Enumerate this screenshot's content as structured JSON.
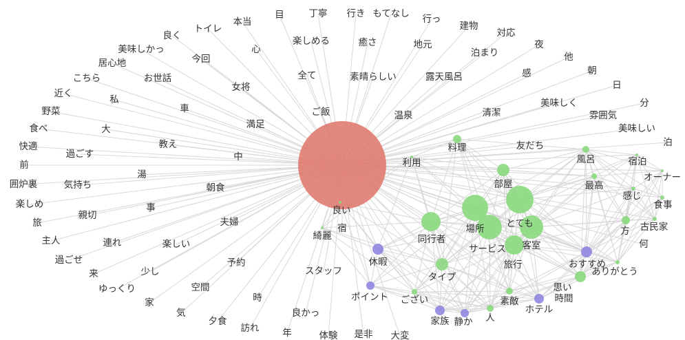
{
  "nodes": [
    {
      "label": "トイレ"
    },
    {
      "label": "本当"
    },
    {
      "label": "目"
    },
    {
      "label": "丁寧"
    },
    {
      "label": "行き"
    },
    {
      "label": "もてなし"
    },
    {
      "label": "行っ"
    },
    {
      "label": "建物"
    },
    {
      "label": "対応"
    },
    {
      "label": "夜"
    },
    {
      "label": "他"
    },
    {
      "label": "朝"
    },
    {
      "label": "日"
    },
    {
      "label": "分"
    },
    {
      "label": "美味しい"
    },
    {
      "label": "泊"
    },
    {
      "label": "宿泊"
    },
    {
      "label": "オーナー"
    },
    {
      "label": "食事"
    },
    {
      "label": "古民家"
    },
    {
      "label": "何"
    },
    {
      "label": "ありがとう"
    },
    {
      "label": "良く"
    },
    {
      "label": "美味しかっ"
    },
    {
      "label": "居心地"
    },
    {
      "label": "こちら"
    },
    {
      "label": "近く"
    },
    {
      "label": "野菜"
    },
    {
      "label": "食べ"
    },
    {
      "label": "快適"
    },
    {
      "label": "前"
    },
    {
      "label": "囲炉裏"
    },
    {
      "label": "楽しめ"
    },
    {
      "label": "旅"
    },
    {
      "label": "主人"
    },
    {
      "label": "過ごせ"
    },
    {
      "label": "来"
    },
    {
      "label": "ゆっくり"
    },
    {
      "label": "家"
    },
    {
      "label": "気"
    },
    {
      "label": "夕食"
    },
    {
      "label": "訪れ"
    },
    {
      "label": "年"
    },
    {
      "label": "体験"
    },
    {
      "label": "是非"
    },
    {
      "label": "大変"
    },
    {
      "label": "今回"
    },
    {
      "label": "心"
    },
    {
      "label": "楽しめる"
    },
    {
      "label": "癒さ"
    },
    {
      "label": "地元"
    },
    {
      "label": "泊まり"
    },
    {
      "label": "感"
    },
    {
      "label": "お世話"
    },
    {
      "label": "女将"
    },
    {
      "label": "全て"
    },
    {
      "label": "素晴らしい"
    },
    {
      "label": "露天風呂"
    },
    {
      "label": "私"
    },
    {
      "label": "車"
    },
    {
      "label": "満足"
    },
    {
      "label": "ご飯"
    },
    {
      "label": "温泉"
    },
    {
      "label": "清潔"
    },
    {
      "label": "美味しく"
    },
    {
      "label": "雰囲気"
    },
    {
      "label": "大"
    },
    {
      "label": "教え"
    },
    {
      "label": "過ごす"
    },
    {
      "label": "中"
    },
    {
      "label": "料理"
    },
    {
      "label": "友だち"
    },
    {
      "label": "風呂"
    },
    {
      "label": "湯"
    },
    {
      "label": "気持ち"
    },
    {
      "label": "朝食"
    },
    {
      "label": "利用"
    },
    {
      "label": "部屋"
    },
    {
      "label": "最高"
    },
    {
      "label": "感じ"
    },
    {
      "label": "事"
    },
    {
      "label": "親切"
    },
    {
      "label": "夫婦"
    },
    {
      "label": "良い"
    },
    {
      "label": "宿"
    },
    {
      "label": "綺麗"
    },
    {
      "label": "とても"
    },
    {
      "label": "場所"
    },
    {
      "label": "同行者"
    },
    {
      "label": "方"
    },
    {
      "label": "連れ"
    },
    {
      "label": "楽しい"
    },
    {
      "label": "客室"
    },
    {
      "label": "サービス"
    },
    {
      "label": "少し"
    },
    {
      "label": "予約"
    },
    {
      "label": "休暇"
    },
    {
      "label": "スタッフ"
    },
    {
      "label": "旅行"
    },
    {
      "label": "おすすめ"
    },
    {
      "label": "タイプ"
    },
    {
      "label": "空間"
    },
    {
      "label": "時"
    },
    {
      "label": "ポイント"
    },
    {
      "label": "ござい"
    },
    {
      "label": "思い"
    },
    {
      "label": "素敵"
    },
    {
      "label": "時間"
    },
    {
      "label": "良かっ"
    },
    {
      "label": "ホテル"
    },
    {
      "label": "家族"
    },
    {
      "label": "静か"
    },
    {
      "label": "人"
    }
  ]
}
